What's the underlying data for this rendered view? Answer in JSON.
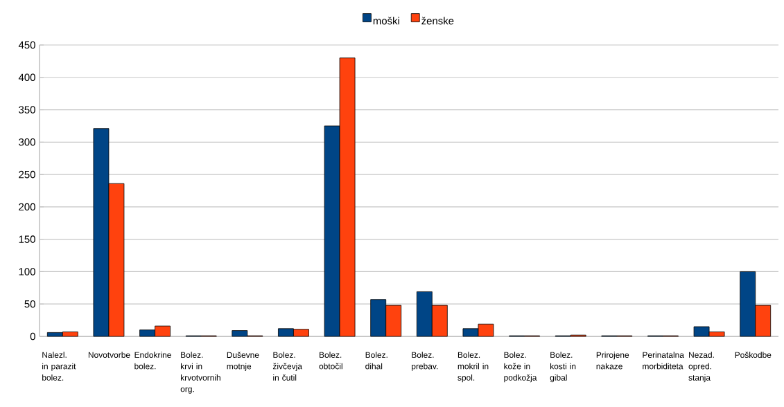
{
  "chart_data": {
    "type": "bar",
    "categories": [
      "Nalezl. in parazit bolez.",
      "Novotvorbe",
      "Endokrine bolez.",
      "Bolez. krvi in krvotvornih org.",
      "Duševne motnje",
      "Bolez. živčevja in čutil",
      "Bolez. obtočil",
      "Bolez. dihal",
      "Bolez. prebav.",
      "Bolez. mokril in spol.",
      "Bolez. kože in podkožja",
      "Bolez. kosti in gibal",
      "Prirojene nakaze",
      "Perinatalna morbiditeta",
      "Nezad. opred. stanja",
      "Poškodbe"
    ],
    "series": [
      {
        "name": "moški",
        "color": "#004586",
        "values": [
          6,
          321,
          10,
          1,
          9,
          12,
          325,
          57,
          69,
          12,
          1,
          1,
          1,
          1,
          15,
          100
        ]
      },
      {
        "name": "ženske",
        "color": "#ff420e",
        "values": [
          7,
          236,
          16,
          1,
          1,
          11,
          430,
          48,
          48,
          19,
          1,
          2,
          1,
          1,
          7,
          48
        ]
      }
    ],
    "ylim": [
      0,
      450
    ],
    "yticks": [
      0,
      50,
      100,
      150,
      200,
      250,
      300,
      350,
      400,
      450
    ],
    "grid": "y",
    "legend": "top"
  }
}
